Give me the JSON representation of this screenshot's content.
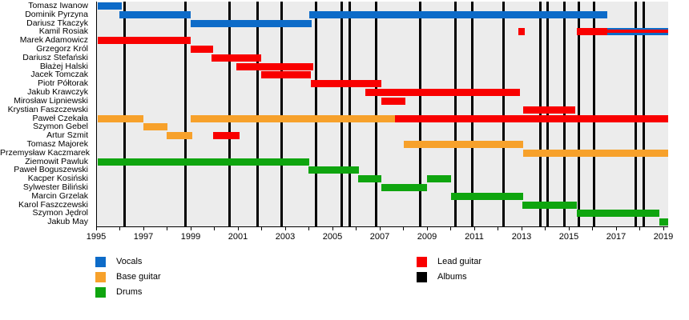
{
  "chart_data": {
    "type": "timeline",
    "description": "Band members timeline (gantt-style) with roles and album release markers",
    "colors": {
      "vocals": "#0D6BC8",
      "bass": "#F7A12B",
      "drums": "#0FA50F",
      "lead": "#F90000",
      "albums": "#000000",
      "plot_background": "#ECECEC"
    },
    "axis": {
      "min": 1995,
      "max": 2019.17,
      "label_years": [
        1995,
        1997,
        1999,
        2001,
        2003,
        2005,
        2007,
        2009,
        2011,
        2013,
        2015,
        2017,
        2019
      ],
      "minor_tick_step": 1
    },
    "albums": [
      1996.15,
      1998.73,
      2000.6,
      2001.78,
      2002.8,
      2004.25,
      2005.34,
      2005.68,
      2006.8,
      2008.66,
      2010.15,
      2010.86,
      2012.19,
      2013.75,
      2014.05,
      2014.76,
      2015.37,
      2016.02,
      2017.78,
      2018.12
    ],
    "members": [
      {
        "name": "Tomasz Iwanow",
        "segments": [
          {
            "role": "vocals",
            "start": 1995.05,
            "end": 1996.05
          }
        ]
      },
      {
        "name": "Dominik Pyrzyna",
        "segments": [
          {
            "role": "vocals",
            "start": 1995.95,
            "end": 1998.95
          },
          {
            "role": "vocals",
            "start": 2004.0,
            "end": 2016.6
          }
        ]
      },
      {
        "name": "Dariusz Tkaczyk",
        "segments": [
          {
            "role": "vocals",
            "start": 1998.95,
            "end": 2004.1
          }
        ]
      },
      {
        "name": "Kamil Rosiak",
        "segments": [
          {
            "role": "lead",
            "start": 2012.82,
            "end": 2013.1
          },
          {
            "role": "lead",
            "start": 2015.3,
            "end": 2016.6
          },
          {
            "role": "vocals+lead",
            "start": 2016.6,
            "end": 2019.17
          }
        ]
      },
      {
        "name": "Marek Adamowicz",
        "segments": [
          {
            "role": "lead",
            "start": 1995.05,
            "end": 1998.95
          }
        ]
      },
      {
        "name": "Grzegorz Król",
        "segments": [
          {
            "role": "lead",
            "start": 1998.95,
            "end": 1999.9
          }
        ]
      },
      {
        "name": "Dariusz Stefański",
        "segments": [
          {
            "role": "lead",
            "start": 1999.85,
            "end": 2001.95
          }
        ]
      },
      {
        "name": "Błażej Halski",
        "segments": [
          {
            "role": "lead",
            "start": 2000.9,
            "end": 2004.15
          }
        ]
      },
      {
        "name": "Jacek Tomczak",
        "segments": [
          {
            "role": "lead",
            "start": 2001.95,
            "end": 2004.05
          }
        ]
      },
      {
        "name": "Piotr Półtorak",
        "segments": [
          {
            "role": "lead",
            "start": 2004.05,
            "end": 2007.05
          }
        ]
      },
      {
        "name": "Jakub Krawczyk",
        "segments": [
          {
            "role": "lead",
            "start": 2006.35,
            "end": 2012.9
          }
        ]
      },
      {
        "name": "Mirosław Lipniewski",
        "segments": [
          {
            "role": "lead",
            "start": 2007.05,
            "end": 2008.05
          }
        ]
      },
      {
        "name": "Krystian Faszczewski",
        "segments": [
          {
            "role": "lead",
            "start": 2013.05,
            "end": 2015.25
          }
        ]
      },
      {
        "name": "Paweł Czekała",
        "segments": [
          {
            "role": "bass",
            "start": 1995.05,
            "end": 1996.95
          },
          {
            "role": "bass",
            "start": 1998.95,
            "end": 2007.6
          },
          {
            "role": "lead",
            "start": 2007.6,
            "end": 2019.17
          }
        ]
      },
      {
        "name": "Szymon Gebel",
        "segments": [
          {
            "role": "bass",
            "start": 1996.95,
            "end": 1998.0
          }
        ]
      },
      {
        "name": "Artur Szmit",
        "segments": [
          {
            "role": "bass",
            "start": 1997.95,
            "end": 1999.05
          },
          {
            "role": "lead",
            "start": 1999.9,
            "end": 2001.05
          }
        ]
      },
      {
        "name": "Tomasz Majorek",
        "segments": [
          {
            "role": "bass",
            "start": 2008.0,
            "end": 2013.05
          }
        ]
      },
      {
        "name": "Przemysław Kaczmarek",
        "segments": [
          {
            "role": "bass",
            "start": 2013.05,
            "end": 2019.17
          }
        ]
      },
      {
        "name": "Ziemowit Pawluk",
        "segments": [
          {
            "role": "drums",
            "start": 1995.05,
            "end": 2004.0
          }
        ]
      },
      {
        "name": "Paweł Boguszewski",
        "segments": [
          {
            "role": "drums",
            "start": 2003.95,
            "end": 2006.1
          }
        ]
      },
      {
        "name": "Kacper Kosiński",
        "segments": [
          {
            "role": "drums",
            "start": 2006.05,
            "end": 2007.05
          },
          {
            "role": "drums",
            "start": 2008.95,
            "end": 2010.0
          }
        ]
      },
      {
        "name": "Sylwester Biliński",
        "segments": [
          {
            "role": "drums",
            "start": 2007.05,
            "end": 2008.95
          }
        ]
      },
      {
        "name": "Marcin Grzelak",
        "segments": [
          {
            "role": "drums",
            "start": 2010.0,
            "end": 2013.05
          }
        ]
      },
      {
        "name": "Karol Faszczewski",
        "segments": [
          {
            "role": "drums",
            "start": 2013.0,
            "end": 2015.3
          }
        ]
      },
      {
        "name": "Szymon Jędrol",
        "segments": [
          {
            "role": "drums",
            "start": 2015.3,
            "end": 2018.8
          }
        ]
      },
      {
        "name": "Jakub May",
        "segments": [
          {
            "role": "drums",
            "start": 2018.8,
            "end": 2019.17
          }
        ]
      }
    ],
    "legend": {
      "column1": [
        {
          "label": "Vocals",
          "color_key": "vocals"
        },
        {
          "label": "Base guitar",
          "color_key": "bass"
        },
        {
          "label": "Drums",
          "color_key": "drums"
        }
      ],
      "column2": [
        {
          "label": "Lead guitar",
          "color_key": "lead"
        },
        {
          "label": "Albums",
          "color_key": "albums"
        }
      ]
    }
  }
}
